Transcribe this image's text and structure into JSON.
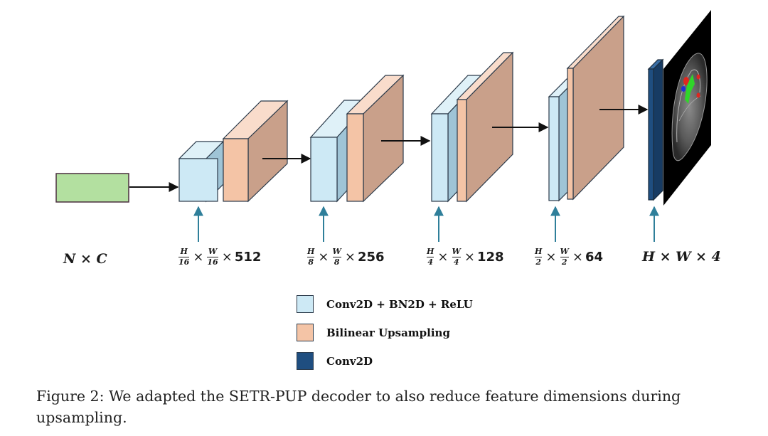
{
  "input_label": "N × C",
  "stages": [
    {
      "numerator_h": "H",
      "denominator_h": "16",
      "numerator_w": "W",
      "denominator_w": "16",
      "channels": "512"
    },
    {
      "numerator_h": "H",
      "denominator_h": "8",
      "numerator_w": "W",
      "denominator_w": "8",
      "channels": "256"
    },
    {
      "numerator_h": "H",
      "denominator_h": "4",
      "numerator_w": "W",
      "denominator_w": "4",
      "channels": "128"
    },
    {
      "numerator_h": "H",
      "denominator_h": "2",
      "numerator_w": "W",
      "denominator_w": "2",
      "channels": "64"
    }
  ],
  "output_label": "H × W × 4",
  "legend": [
    {
      "label": "Conv2D + BN2D + ReLU",
      "color": "#cde9f5"
    },
    {
      "label": "Bilinear Upsampling",
      "color": "#f4c4a6"
    },
    {
      "label": "Conv2D",
      "color": "#1f4e80"
    }
  ],
  "colors": {
    "input": "#b3e0a0",
    "conv_front": "#cde9f5",
    "conv_top": "#dff1f8",
    "conv_side": "#9fc4d6",
    "ups_front": "#f4c4a6",
    "ups_top": "#f9dccb",
    "ups_side": "#c9a08a",
    "final_conv": "#1f4e80",
    "arrow_teal": "#2f7f9a"
  },
  "caption": "Figure 2: We adapted the SETR-PUP decoder to also reduce feature dimensions during upsampling."
}
